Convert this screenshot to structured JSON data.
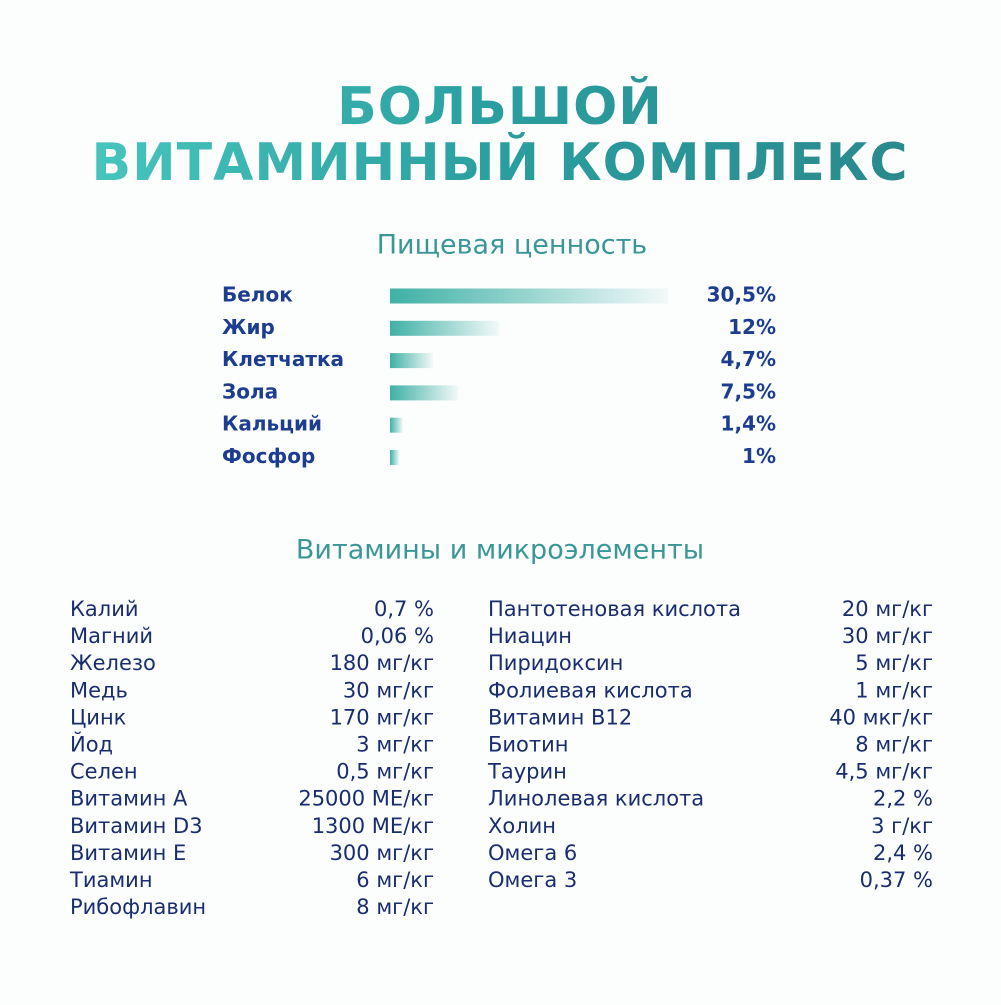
{
  "header": {
    "title": [
      "БОЛЬШОЙ",
      "ВИТАМИННЫЙ КОМПЛЕКС"
    ]
  },
  "chart_data": {
    "type": "bar",
    "orientation": "horizontal",
    "title": "Пищевая ценность",
    "categories": [
      "Белок",
      "Жир",
      "Клетчатка",
      "Зола",
      "Кальций",
      "Фосфор"
    ],
    "values": [
      30.5,
      12,
      4.7,
      7.5,
      1.4,
      1
    ],
    "value_labels": [
      "30,5%",
      "12%",
      "4,7%",
      "7,5%",
      "1,4%",
      "1%"
    ],
    "color": "#3fb1a6"
  },
  "vitamins": {
    "title": "Витамины и микроэлементы",
    "left": [
      [
        "Калий",
        "0,7 %"
      ],
      [
        "Магний",
        "0,06 %"
      ],
      [
        "Железо",
        "180 мг/кг"
      ],
      [
        "Медь",
        "30 мг/кг"
      ],
      [
        "Цинк",
        "170 мг/кг"
      ],
      [
        "Йод",
        "3 мг/кг"
      ],
      [
        "Селен",
        "0,5 мг/кг"
      ],
      [
        "Витамин А",
        "25000 МЕ/кг"
      ],
      [
        "Витамин D3",
        "1300 МЕ/кг"
      ],
      [
        "Витамин Е",
        "300 мг/кг"
      ],
      [
        "Тиамин",
        "6 мг/кг"
      ],
      [
        "Рибофлавин",
        "8 мг/кг"
      ]
    ],
    "right": [
      [
        "Пантотеновая кислота",
        "20 мг/кг"
      ],
      [
        "Ниацин",
        "30 мг/кг"
      ],
      [
        "Пиридоксин",
        "5 мг/кг"
      ],
      [
        "Фолиевая кислота",
        "1 мг/кг"
      ],
      [
        "Витамин В12",
        "40 мкг/кг"
      ],
      [
        "Биотин",
        "8 мг/кг"
      ],
      [
        "Таурин",
        "4,5 мг/кг"
      ],
      [
        "Линолевая кислота",
        "2,2 %"
      ],
      [
        "Холин",
        "3 г/кг"
      ],
      [
        "Омега 6",
        "2,4 %"
      ],
      [
        "Омега 3",
        "0,37 %"
      ]
    ]
  }
}
